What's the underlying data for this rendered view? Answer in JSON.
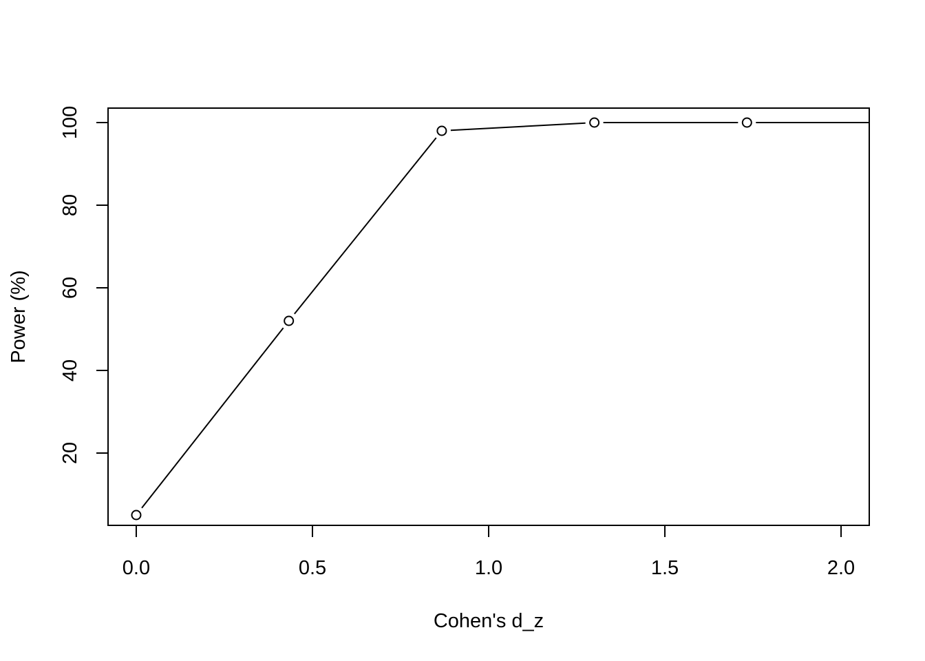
{
  "chart_data": {
    "type": "line",
    "title": "",
    "xlabel": "Cohen's d_z",
    "ylabel": "Power (%)",
    "xlim": [
      -0.08,
      2.08
    ],
    "ylim": [
      2.5,
      103.5
    ],
    "x_ticks": [
      0.0,
      0.5,
      1.0,
      1.5,
      2.0
    ],
    "x_tick_labels": [
      "0.0",
      "0.5",
      "1.0",
      "1.5",
      "2.0"
    ],
    "y_ticks": [
      20,
      40,
      60,
      80,
      100
    ],
    "y_tick_labels": [
      "20",
      "40",
      "60",
      "80",
      "100"
    ],
    "grid": false,
    "series": [
      {
        "x": [
          0.0,
          0.433,
          0.867,
          1.3,
          1.733,
          2.167
        ],
        "y": [
          5,
          52,
          98,
          100,
          100,
          100
        ]
      }
    ]
  }
}
